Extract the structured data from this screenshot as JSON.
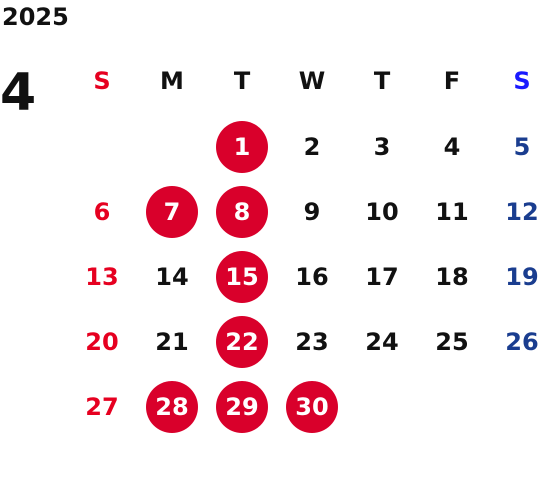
{
  "calendar": {
    "year": "2025",
    "month": "4",
    "weekdays": [
      "S",
      "M",
      "T",
      "W",
      "T",
      "F",
      "S"
    ],
    "start_offset": 2,
    "days_in_month": 30,
    "highlighted_days": [
      1,
      7,
      8,
      15,
      22,
      28,
      29,
      30
    ],
    "colors": {
      "sunday": "#e60020",
      "saturday_header": "#1a1aff",
      "saturday": "#1a3d8f",
      "highlight_fill": "#d9002b",
      "text": "#111111"
    }
  }
}
